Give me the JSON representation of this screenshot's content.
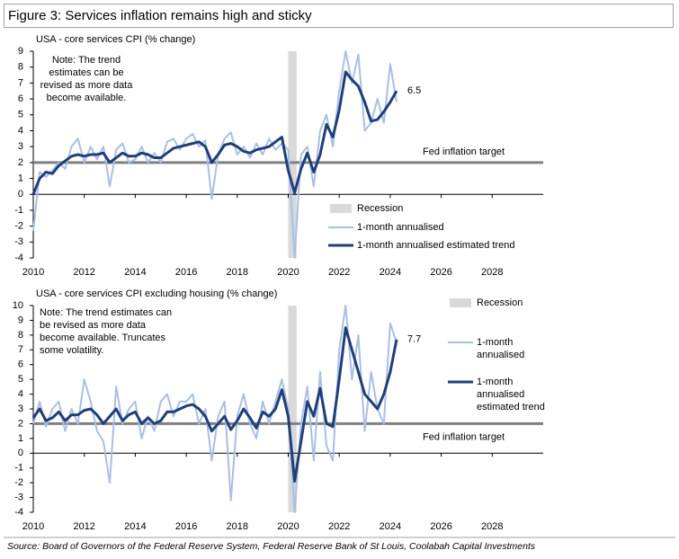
{
  "header": {
    "title": "Figure 3: Services inflation remains high and sticky"
  },
  "footer": {
    "source": "Source: Board of Governors of the Federal Reserve System, Federal Reserve Bank of St Louis, Coolabah Capital Investments"
  },
  "chart_data": [
    {
      "type": "line",
      "title": "USA - core  services CPI (% change)",
      "note": "Note: The trend estimates can be revised as more data become available.",
      "x": [
        2010,
        2010.25,
        2010.5,
        2010.75,
        2011,
        2011.25,
        2011.5,
        2011.75,
        2012,
        2012.25,
        2012.5,
        2012.75,
        2013,
        2013.25,
        2013.5,
        2013.75,
        2014,
        2014.25,
        2014.5,
        2014.75,
        2015,
        2015.25,
        2015.5,
        2015.75,
        2016,
        2016.25,
        2016.5,
        2016.75,
        2017,
        2017.25,
        2017.5,
        2017.75,
        2018,
        2018.25,
        2018.5,
        2018.75,
        2019,
        2019.25,
        2019.5,
        2019.75,
        2020,
        2020.25,
        2020.5,
        2020.75,
        2021,
        2021.25,
        2021.5,
        2021.75,
        2022,
        2022.25,
        2022.5,
        2022.75,
        2023,
        2023.25,
        2023.5,
        2023.75,
        2024,
        2024.25
      ],
      "xlim": [
        2010,
        2030
      ],
      "xticks": [
        2010,
        2012,
        2014,
        2016,
        2018,
        2020,
        2022,
        2024,
        2026,
        2028
      ],
      "ylim": [
        -4,
        9
      ],
      "yticks": [
        -4,
        -3,
        -2,
        -1,
        0,
        1,
        2,
        3,
        4,
        5,
        6,
        7,
        8,
        9
      ],
      "shaded_regions": [
        {
          "name": "Recession",
          "x": [
            2020.0,
            2020.33
          ],
          "color": "#d9d9d9"
        }
      ],
      "reference_lines": [
        {
          "value": 2,
          "label": "Fed inflation target",
          "color": "#808080"
        }
      ],
      "end_label": "6.5",
      "series": [
        {
          "name": "1-month annualised",
          "color": "#a9bfe3",
          "width": 2,
          "values": [
            -2.3,
            1.4,
            1.1,
            1.5,
            2.0,
            1.6,
            3.0,
            3.5,
            2.0,
            3.0,
            2.2,
            3.0,
            0.5,
            2.8,
            3.2,
            2.0,
            2.2,
            3.0,
            2.0,
            2.6,
            2.0,
            3.3,
            3.5,
            2.8,
            3.5,
            3.8,
            3.0,
            3.4,
            -0.3,
            2.5,
            3.5,
            3.9,
            2.5,
            3.0,
            2.3,
            3.2,
            2.5,
            3.5,
            2.8,
            3.2,
            2.8,
            -4.0,
            2.5,
            3.0,
            0.5,
            4.0,
            5.0,
            3.0,
            6.5,
            9.0,
            7.0,
            8.8,
            4.0,
            4.5,
            6.0,
            4.5,
            8.2,
            5.8
          ]
        },
        {
          "name": "1-month annualised estimated trend",
          "color": "#1f3e7a",
          "width": 3,
          "values": [
            0.0,
            1.0,
            1.4,
            1.3,
            1.8,
            2.1,
            2.4,
            2.5,
            2.4,
            2.5,
            2.5,
            2.6,
            2.0,
            2.3,
            2.6,
            2.4,
            2.4,
            2.6,
            2.5,
            2.3,
            2.3,
            2.6,
            2.9,
            3.0,
            3.1,
            3.2,
            3.3,
            3.0,
            2.0,
            2.5,
            3.1,
            3.2,
            3.0,
            2.7,
            2.6,
            2.8,
            2.9,
            3.0,
            3.3,
            3.6,
            1.5,
            0.1,
            1.6,
            2.6,
            1.4,
            2.5,
            4.4,
            3.6,
            5.3,
            7.7,
            7.2,
            6.8,
            5.8,
            4.6,
            4.7,
            5.2,
            5.8,
            6.5
          ]
        }
      ]
    },
    {
      "type": "line",
      "title": "USA - core  services CPI excluding housing (% change)",
      "note": "Note: The trend estimates can be revised as more data become available.  Truncates some volatility.",
      "x": [
        2010,
        2010.25,
        2010.5,
        2010.75,
        2011,
        2011.25,
        2011.5,
        2011.75,
        2012,
        2012.25,
        2012.5,
        2012.75,
        2013,
        2013.25,
        2013.5,
        2013.75,
        2014,
        2014.25,
        2014.5,
        2014.75,
        2015,
        2015.25,
        2015.5,
        2015.75,
        2016,
        2016.25,
        2016.5,
        2016.75,
        2017,
        2017.25,
        2017.5,
        2017.75,
        2018,
        2018.25,
        2018.5,
        2018.75,
        2019,
        2019.25,
        2019.5,
        2019.75,
        2020,
        2020.25,
        2020.5,
        2020.75,
        2021,
        2021.25,
        2021.5,
        2021.75,
        2022,
        2022.25,
        2022.5,
        2022.75,
        2023,
        2023.25,
        2023.5,
        2023.75,
        2024,
        2024.25
      ],
      "xlim": [
        2010,
        2030
      ],
      "xticks": [
        2010,
        2012,
        2014,
        2016,
        2018,
        2020,
        2022,
        2024,
        2026,
        2028
      ],
      "ylim": [
        -4,
        10
      ],
      "yticks": [
        -4,
        -3,
        -2,
        -1,
        0,
        1,
        2,
        3,
        4,
        5,
        6,
        7,
        8,
        9,
        10
      ],
      "shaded_regions": [
        {
          "name": "Recession",
          "x": [
            2020.0,
            2020.33
          ],
          "color": "#d9d9d9"
        }
      ],
      "reference_lines": [
        {
          "value": 2,
          "label": "Fed inflation target",
          "color": "#808080"
        }
      ],
      "end_label": "7.7",
      "series": [
        {
          "name": "1-month annualised",
          "color": "#a9bfe3",
          "width": 2,
          "values": [
            2.0,
            3.5,
            1.8,
            3.0,
            3.5,
            1.5,
            3.0,
            2.0,
            5.0,
            3.5,
            1.5,
            0.8,
            -2.0,
            4.5,
            2.0,
            3.0,
            3.5,
            1.0,
            2.5,
            1.5,
            3.5,
            4.0,
            2.5,
            3.5,
            3.5,
            4.0,
            2.0,
            3.0,
            -0.5,
            2.5,
            3.5,
            -3.2,
            2.5,
            4.0,
            2.0,
            1.0,
            3.5,
            2.0,
            3.5,
            5.0,
            3.0,
            -4.0,
            2.0,
            4.5,
            -0.5,
            5.5,
            0.5,
            -0.5,
            7.0,
            10.0,
            5.0,
            8.0,
            1.5,
            5.5,
            3.0,
            2.0,
            8.8,
            7.5
          ]
        },
        {
          "name": "1-month annualised estimated trend",
          "color": "#1f3e7a",
          "width": 3,
          "values": [
            2.4,
            3.0,
            2.2,
            2.4,
            2.8,
            2.2,
            2.6,
            2.6,
            2.9,
            3.0,
            2.6,
            2.0,
            2.5,
            3.0,
            2.2,
            2.6,
            2.8,
            2.0,
            2.4,
            2.0,
            2.2,
            2.8,
            2.8,
            3.0,
            3.2,
            3.3,
            3.0,
            2.5,
            1.5,
            2.0,
            2.5,
            1.6,
            2.2,
            3.0,
            2.4,
            1.7,
            2.8,
            2.5,
            3.0,
            4.3,
            2.5,
            -1.9,
            0.8,
            3.5,
            2.5,
            4.4,
            2.0,
            1.8,
            5.0,
            8.5,
            7.0,
            5.5,
            4.0,
            3.5,
            3.0,
            4.0,
            5.5,
            7.7
          ]
        }
      ]
    }
  ]
}
